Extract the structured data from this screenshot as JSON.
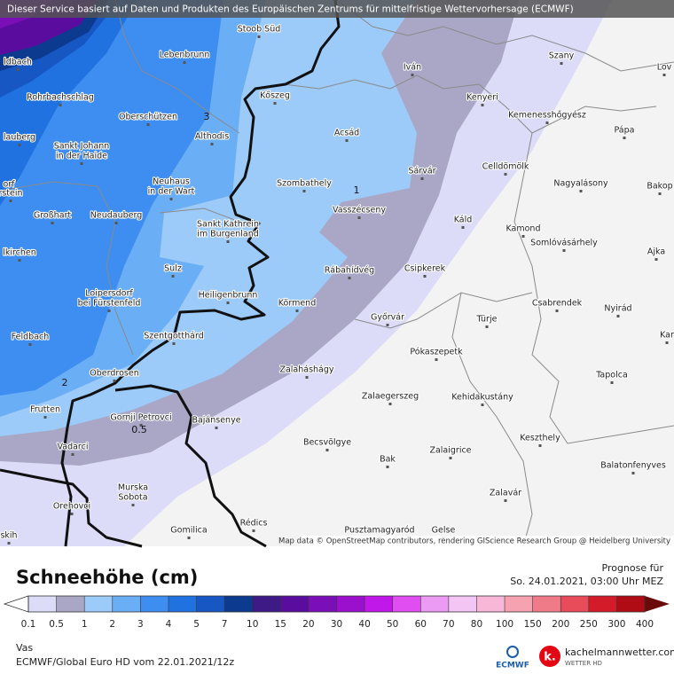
{
  "banner": "Dieser Service basiert auf Daten und Produkten des Europäischen Zentrums für mittelfristige Wettervorhersage (ECMWF)",
  "attribution": "Map data © OpenStreetMap contributors, rendering GIScience Research Group @ Heidelberg University",
  "places": [
    [
      "Stoob Süd"
    ],
    [
      "Lebenbrunn"
    ],
    [
      "Iván"
    ],
    [
      "Szany"
    ],
    [
      "Lov"
    ],
    [
      "ldbach"
    ],
    [
      "Rohrbachschlag"
    ],
    [
      "Kőszeg"
    ],
    [
      "Kenyeri"
    ],
    [
      "Oberschützen"
    ],
    [
      "Kemenesshőgyész"
    ],
    [
      "lauberg"
    ],
    [
      "Acsád"
    ],
    [
      "Pápa"
    ],
    [
      "Sankt Johann",
      "in der Haide"
    ],
    [
      "Althodis"
    ],
    [
      "Sárvár"
    ],
    [
      "Celldömölk"
    ],
    [
      "Nagyalásony"
    ],
    [
      "orf"
    ],
    [
      "rstein"
    ],
    [
      "Neuhaus",
      "in der Wart"
    ],
    [
      "Szombathely"
    ],
    [
      "Bakop"
    ],
    [
      "Vasszécseny"
    ],
    [
      "Großhart"
    ],
    [
      "Neudauberg"
    ],
    [
      "Káld"
    ],
    [
      "Sankt Kathrein",
      "im Burgenland"
    ],
    [
      "Kamond"
    ],
    [
      "Somlóvásárhely"
    ],
    [
      "Ajka"
    ],
    [
      "lkirchen"
    ],
    [
      "Sulz"
    ],
    [
      "Rábahídvég"
    ],
    [
      "Csipkerek"
    ],
    [
      "Loipersdorf",
      "bei Fürstenfeld"
    ],
    [
      "Heiligenbrunn"
    ],
    [
      "Körmend"
    ],
    [
      "Csabrendek"
    ],
    [
      "Nyirád"
    ],
    [
      "Győrvár"
    ],
    [
      "Türje"
    ],
    [
      "Feldbach"
    ],
    [
      "Szentgotthárd"
    ],
    [
      "Kar"
    ],
    [
      "Pókaszepetk"
    ],
    [
      "Oberdrosen"
    ],
    [
      "Zalaháshágy"
    ],
    [
      "Tapolca"
    ],
    [
      "Zalaegerszeg"
    ],
    [
      "Kehidakustány"
    ],
    [
      "Frutten"
    ],
    [
      "Gornji Petrovci"
    ],
    [
      "Bajánsenye"
    ],
    [
      "Keszthely"
    ],
    [
      "Becsvölgye"
    ],
    [
      "Vadarci"
    ],
    [
      "Bak"
    ],
    [
      "Zalaigrice"
    ],
    [
      "Balatonfenyves"
    ],
    [
      "Murska",
      "Sobota"
    ],
    [
      "Zalavár"
    ],
    [
      "Orehovci"
    ],
    [
      "Rédics"
    ],
    [
      "Gomilica"
    ],
    [
      "Pusztamagyaród"
    ],
    [
      "Gelse"
    ],
    [
      "skih"
    ]
  ],
  "contour_labels": [
    "1",
    "3",
    "2",
    "0.5"
  ],
  "legend": {
    "title": "Schneehöhe (cm)",
    "forecast_label": "Prognose für",
    "forecast_time": "So. 24.01.2021, 03:00 Uhr MEZ",
    "ticks": [
      0.1,
      0.5,
      1,
      2,
      3,
      4,
      5,
      7,
      10,
      15,
      20,
      30,
      40,
      50,
      60,
      70,
      80,
      100,
      150,
      200,
      250,
      300,
      400
    ],
    "colors": [
      "#dcdcf8",
      "#a9a7c5",
      "#9ccaf9",
      "#6aaef5",
      "#3d8ef0",
      "#1f72e0",
      "#1657c4",
      "#0c3a8e",
      "#3d1a85",
      "#5a0c9e",
      "#7a0fb7",
      "#9a10cc",
      "#c018e8",
      "#e04df0",
      "#eb9bf4",
      "#f3c5f5",
      "#f9b7d7",
      "#f6a2b0",
      "#f07b88",
      "#e84b5a",
      "#d41b2a",
      "#b00c16"
    ],
    "under_color": "#ffffff",
    "over_color": "#6b0a0a"
  },
  "footer": {
    "region": "Vas",
    "model": "ECMWF/Global Euro HD vom  22.01.2021/12z",
    "ecmwf_logo": "ECMWF",
    "k_logo": "k.",
    "site": "kachelmannwetter.com",
    "site_sub": "WETTER HD"
  }
}
